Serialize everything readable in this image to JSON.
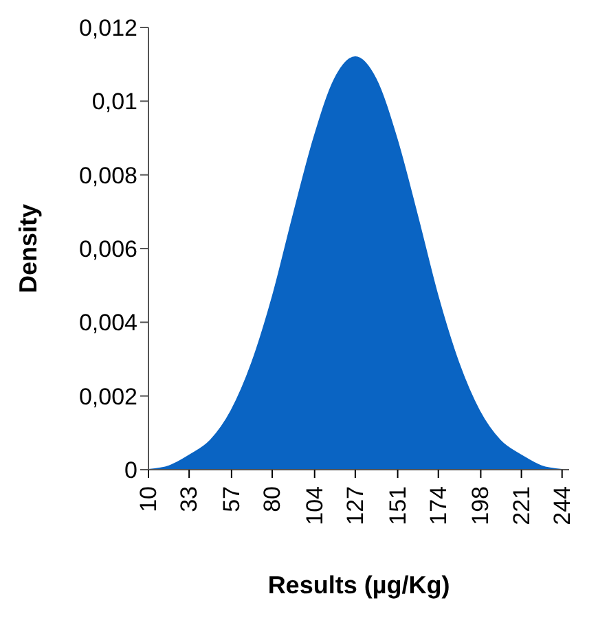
{
  "chart_data": {
    "type": "area",
    "xlabel": "Results (µg/Kg)",
    "ylabel": "Density",
    "x": [
      10,
      21.7,
      33.4,
      45.1,
      56.8,
      68.5,
      80.2,
      91.9,
      103.6,
      115.3,
      127,
      138.7,
      150.4,
      162.1,
      173.8,
      185.5,
      197.2,
      208.9,
      220.6,
      232.3,
      244
    ],
    "series": [
      {
        "color": "#0a64c3",
        "values": [
          0,
          0.0001,
          0.0004,
          0.0008,
          0.0016,
          0.0029,
          0.0047,
          0.0069,
          0.009,
          0.0106,
          0.0112,
          0.0106,
          0.009,
          0.0069,
          0.0047,
          0.0029,
          0.0016,
          0.0008,
          0.0004,
          0.0001,
          0
        ]
      }
    ],
    "xlim": [
      10,
      248
    ],
    "xticks": [
      10,
      33,
      57,
      80,
      104,
      127,
      151,
      174,
      198,
      221,
      244
    ],
    "ylim": [
      0,
      0.012
    ],
    "yticks": [
      0,
      {
        "value": 0.002,
        "label": "0,002"
      },
      {
        "value": 0.004,
        "label": "0,004"
      },
      {
        "value": 0.006,
        "label": "0,006"
      },
      {
        "value": 0.008,
        "label": "0,008"
      },
      {
        "value": 0.01,
        "label": "0,01"
      },
      {
        "value": 0.012,
        "label": "0,012"
      }
    ],
    "grid": false,
    "legend": false
  }
}
